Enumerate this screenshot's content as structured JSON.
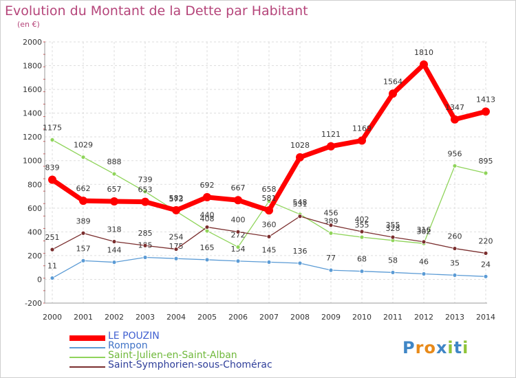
{
  "header": {
    "title": "Evolution du Montant de la Dette par Habitant",
    "unit": "(en €)"
  },
  "chart_data": {
    "type": "line",
    "title": "Evolution du Montant de la Dette par Habitant",
    "ylabel": "(en €)",
    "xlabel": "",
    "x": [
      "2000",
      "2001",
      "2002",
      "2003",
      "2004",
      "2005",
      "2006",
      "2007",
      "2008",
      "2009",
      "2010",
      "2011",
      "2012",
      "2013",
      "2014"
    ],
    "ylim": [
      -200,
      2000
    ],
    "yticks": [
      -200,
      0,
      200,
      400,
      600,
      800,
      1000,
      1200,
      1400,
      1600,
      1800,
      2000
    ],
    "grid": true,
    "legend_position": "bottom-left",
    "series": [
      {
        "name": "LE POUZIN",
        "color": "#ff0000",
        "values": [
          839,
          662,
          657,
          653,
          582,
          692,
          667,
          581,
          1028,
          1121,
          1169,
          1564,
          1810,
          1347,
          1413
        ]
      },
      {
        "name": "Rompon",
        "color": "#5b9bd5",
        "values": [
          11,
          157,
          144,
          185,
          175,
          165,
          154,
          145,
          136,
          77,
          68,
          58,
          46,
          35,
          24
        ]
      },
      {
        "name": "Saint-Julien-en-Saint-Alban",
        "color": "#8fd45a",
        "values": [
          1175,
          1029,
          888,
          739,
          573,
          408,
          272,
          658,
          548,
          389,
          355,
          328,
          302,
          956,
          895
        ]
      },
      {
        "name": "Saint-Symphorien-sous-Chomérac",
        "color": "#7a2e2e",
        "values": [
          251,
          389,
          318,
          285,
          254,
          440,
          400,
          360,
          531,
          456,
          402,
          355,
          316,
          260,
          220
        ]
      }
    ]
  },
  "logo": {
    "letters": [
      "P",
      "r",
      "o",
      "x",
      "i",
      "t",
      "i"
    ],
    "colors": [
      "#3f86c6",
      "#e88a1a",
      "#e88a1a",
      "#3f86c6",
      "#8fc43a",
      "#3f86c6",
      "#8fc43a"
    ]
  }
}
